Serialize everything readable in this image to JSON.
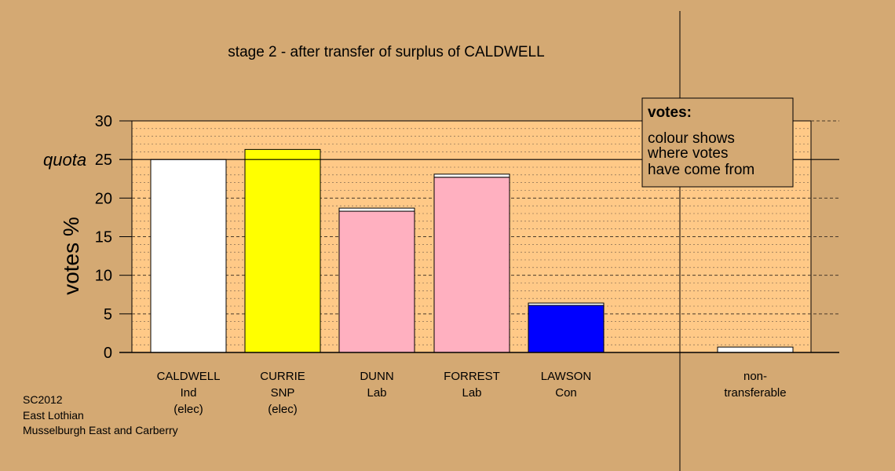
{
  "chart_data": {
    "type": "bar",
    "title": "stage 2 - after transfer of surplus of CALDWELL",
    "ylabel": "votes %",
    "ylim": [
      0,
      30
    ],
    "yticks": [
      0,
      5,
      10,
      15,
      20,
      25,
      30
    ],
    "quota": {
      "label": "quota",
      "value": 25
    },
    "categories": [
      {
        "lines": [
          "CALDWELL",
          "Ind",
          "(elec)"
        ]
      },
      {
        "lines": [
          "CURRIE",
          "SNP",
          "(elec)"
        ]
      },
      {
        "lines": [
          "DUNN",
          "Lab"
        ]
      },
      {
        "lines": [
          "FORREST",
          "Lab"
        ]
      },
      {
        "lines": [
          "LAWSON",
          "Con"
        ]
      },
      {
        "lines": [
          "non-",
          "transferable"
        ]
      }
    ],
    "bars": [
      {
        "candidate": "CALDWELL",
        "segments": [
          {
            "value": 25.0,
            "color": "#ffffff"
          }
        ]
      },
      {
        "candidate": "CURRIE",
        "segments": [
          {
            "value": 26.3,
            "color": "#ffff00"
          }
        ]
      },
      {
        "candidate": "DUNN",
        "segments": [
          {
            "value": 18.3,
            "color": "#ffb0c0"
          },
          {
            "value": 0.4,
            "color": "#ffffff"
          }
        ]
      },
      {
        "candidate": "FORREST",
        "segments": [
          {
            "value": 22.7,
            "color": "#ffb0c0"
          },
          {
            "value": 0.4,
            "color": "#ffffff"
          }
        ]
      },
      {
        "candidate": "LAWSON",
        "segments": [
          {
            "value": 6.1,
            "color": "#0000ff"
          },
          {
            "value": 0.3,
            "color": "#ffffff"
          }
        ]
      },
      {
        "candidate": "non-transferable",
        "segments": [
          {
            "value": 0.7,
            "color": "#ffffff"
          }
        ]
      }
    ],
    "legend": {
      "title": "votes:",
      "lines": [
        "colour shows",
        "where votes",
        "have come from"
      ],
      "placement": "top-right"
    },
    "grid": true,
    "colors": {
      "background": "#d4a973",
      "plot_area": "#ffc987"
    }
  },
  "footer": {
    "lines": [
      "SC2012",
      "East Lothian",
      "Musselburgh East and Carberry"
    ]
  }
}
